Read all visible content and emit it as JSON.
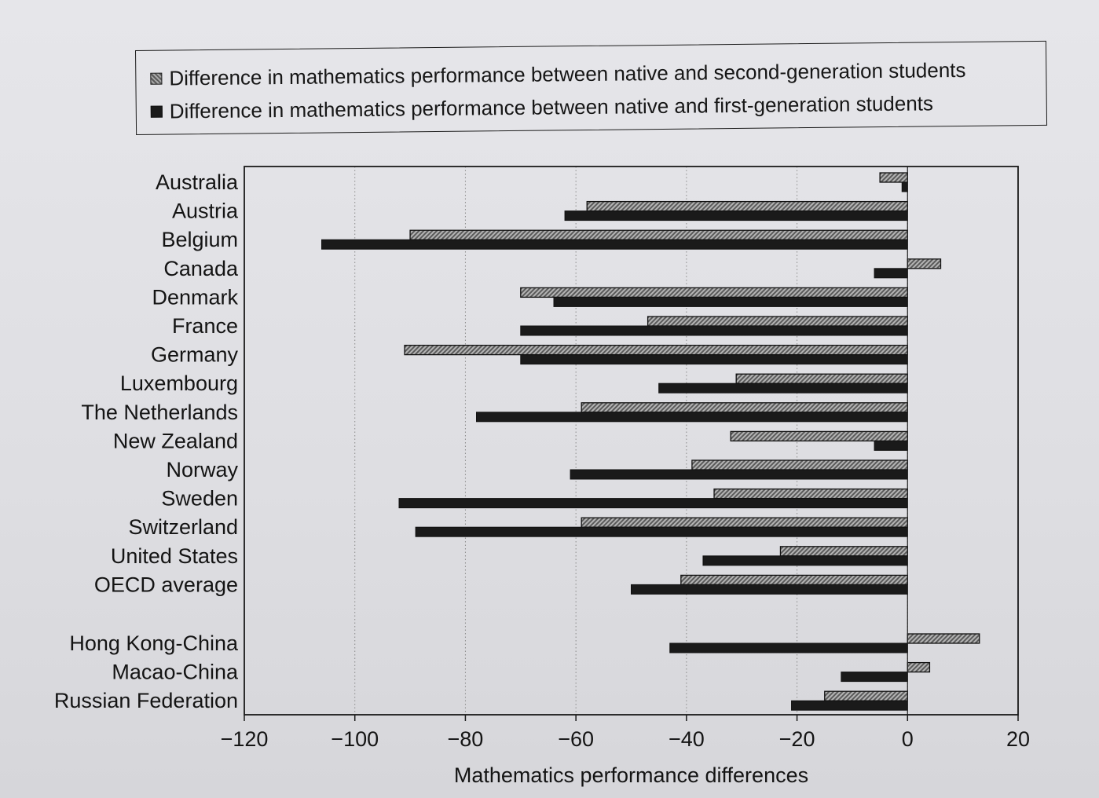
{
  "legend": {
    "second_generation": "Difference in mathematics performance between native and second-generation students",
    "first_generation": "Difference in mathematics performance between native and first-generation students"
  },
  "colors": {
    "second_generation_fill": "#9a9a9a",
    "first_generation_fill": "#1a1a1a"
  },
  "chart_data": {
    "type": "bar",
    "orientation": "horizontal",
    "xlabel": "Mathematics performance differences",
    "ylabel": "",
    "xlim": [
      -120,
      20
    ],
    "xticks": [
      -120,
      -100,
      -80,
      -60,
      -40,
      -20,
      0,
      20
    ],
    "grid": "vertical dotted",
    "legend_position": "top",
    "categories": [
      "Australia",
      "Austria",
      "Belgium",
      "Canada",
      "Denmark",
      "France",
      "Germany",
      "Luxembourg",
      "The Netherlands",
      "New Zealand",
      "Norway",
      "Sweden",
      "Switzerland",
      "United States",
      "OECD average",
      "Hong Kong-China",
      "Macao-China",
      "Russian Federation"
    ],
    "series": [
      {
        "name": "Difference in mathematics performance between native and second-generation students",
        "values": [
          -5,
          -58,
          -90,
          6,
          -70,
          -47,
          -91,
          -31,
          -59,
          -32,
          -39,
          -35,
          -59,
          -23,
          -41,
          13,
          4,
          -15
        ]
      },
      {
        "name": "Difference in mathematics performance between native and first-generation students",
        "values": [
          -1,
          -62,
          -106,
          -6,
          -64,
          -70,
          -70,
          -45,
          -78,
          -6,
          -61,
          -92,
          -89,
          -37,
          -50,
          -43,
          -12,
          -21
        ]
      }
    ]
  }
}
